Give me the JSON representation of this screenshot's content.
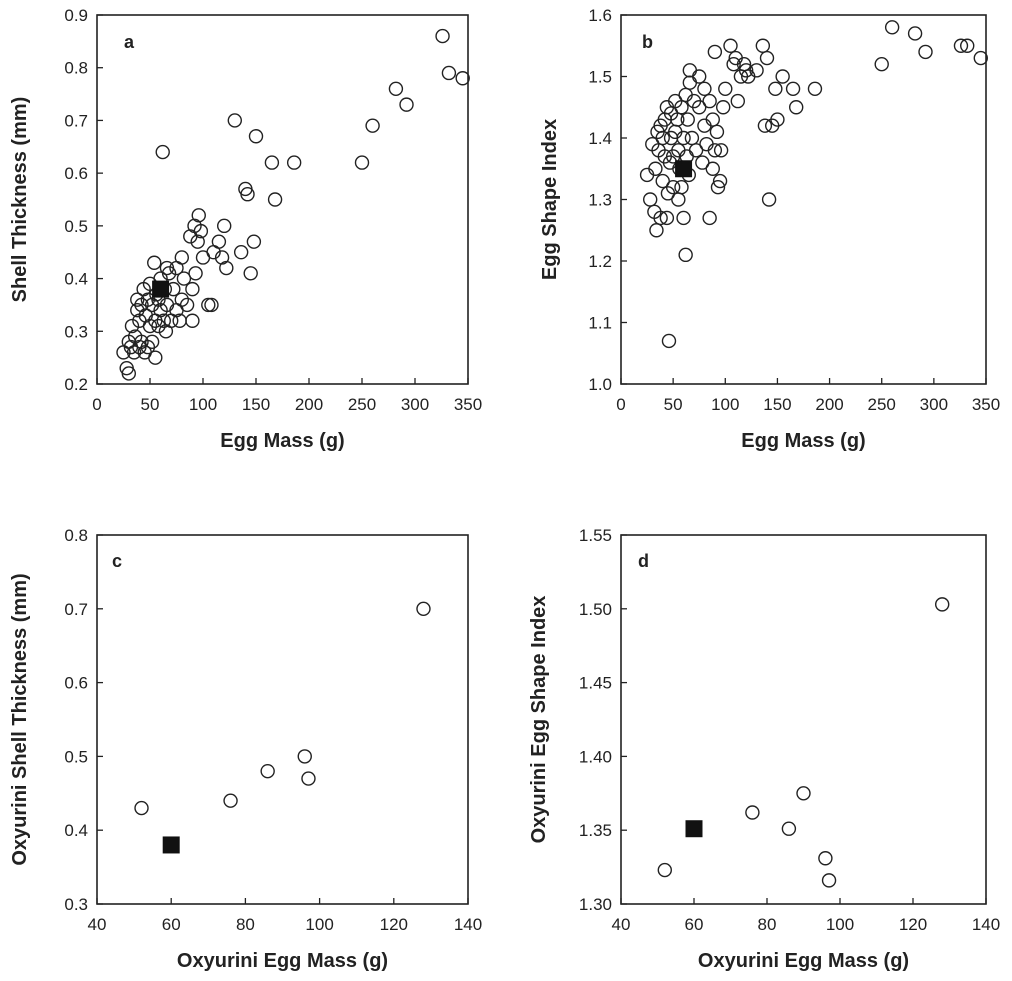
{
  "colors": {
    "axis": "#222222",
    "marker": "#222222",
    "highlight": "#111111"
  },
  "chart_data": [
    {
      "panel": "a",
      "type": "scatter",
      "title": "",
      "xlabel": "Egg Mass (g)",
      "ylabel": "Shell Thickness (mm)",
      "xlim": [
        0,
        350
      ],
      "ylim": [
        0.2,
        0.9
      ],
      "xticks": [
        0,
        50,
        100,
        150,
        200,
        250,
        300,
        350
      ],
      "yticks": [
        0.2,
        0.3,
        0.4,
        0.5,
        0.6,
        0.7,
        0.8,
        0.9
      ],
      "tick_decimals": 1,
      "grid": false,
      "points": [
        [
          25,
          0.26
        ],
        [
          28,
          0.23
        ],
        [
          30,
          0.22
        ],
        [
          30,
          0.28
        ],
        [
          32,
          0.27
        ],
        [
          33,
          0.31
        ],
        [
          35,
          0.26
        ],
        [
          36,
          0.29
        ],
        [
          38,
          0.34
        ],
        [
          38,
          0.36
        ],
        [
          40,
          0.27
        ],
        [
          40,
          0.32
        ],
        [
          42,
          0.28
        ],
        [
          42,
          0.35
        ],
        [
          44,
          0.38
        ],
        [
          45,
          0.26
        ],
        [
          46,
          0.33
        ],
        [
          48,
          0.27
        ],
        [
          48,
          0.36
        ],
        [
          50,
          0.31
        ],
        [
          50,
          0.39
        ],
        [
          52,
          0.28
        ],
        [
          52,
          0.35
        ],
        [
          54,
          0.43
        ],
        [
          55,
          0.25
        ],
        [
          55,
          0.32
        ],
        [
          56,
          0.37
        ],
        [
          58,
          0.31
        ],
        [
          58,
          0.36
        ],
        [
          60,
          0.34
        ],
        [
          60,
          0.4
        ],
        [
          62,
          0.64
        ],
        [
          63,
          0.32
        ],
        [
          64,
          0.38
        ],
        [
          65,
          0.3
        ],
        [
          66,
          0.42
        ],
        [
          66,
          0.35
        ],
        [
          68,
          0.41
        ],
        [
          70,
          0.32
        ],
        [
          72,
          0.38
        ],
        [
          75,
          0.34
        ],
        [
          75,
          0.42
        ],
        [
          78,
          0.32
        ],
        [
          80,
          0.44
        ],
        [
          80,
          0.36
        ],
        [
          82,
          0.4
        ],
        [
          85,
          0.35
        ],
        [
          88,
          0.48
        ],
        [
          90,
          0.32
        ],
        [
          90,
          0.38
        ],
        [
          92,
          0.5
        ],
        [
          93,
          0.41
        ],
        [
          95,
          0.47
        ],
        [
          96,
          0.52
        ],
        [
          98,
          0.49
        ],
        [
          100,
          0.44
        ],
        [
          105,
          0.35
        ],
        [
          108,
          0.35
        ],
        [
          110,
          0.45
        ],
        [
          115,
          0.47
        ],
        [
          118,
          0.44
        ],
        [
          120,
          0.5
        ],
        [
          122,
          0.42
        ],
        [
          130,
          0.7
        ],
        [
          136,
          0.45
        ],
        [
          140,
          0.57
        ],
        [
          142,
          0.56
        ],
        [
          145,
          0.41
        ],
        [
          148,
          0.47
        ],
        [
          150,
          0.67
        ],
        [
          165,
          0.62
        ],
        [
          168,
          0.55
        ],
        [
          186,
          0.62
        ],
        [
          250,
          0.62
        ],
        [
          260,
          0.69
        ],
        [
          282,
          0.76
        ],
        [
          292,
          0.73
        ],
        [
          326,
          0.86
        ],
        [
          332,
          0.79
        ],
        [
          345,
          0.78
        ]
      ],
      "highlight": [
        [
          60,
          0.38
        ]
      ]
    },
    {
      "panel": "b",
      "type": "scatter",
      "title": "",
      "xlabel": "Egg Mass (g)",
      "ylabel": "Egg Shape Index",
      "xlim": [
        0,
        350
      ],
      "ylim": [
        1.0,
        1.6
      ],
      "xticks": [
        0,
        50,
        100,
        150,
        200,
        250,
        300,
        350
      ],
      "yticks": [
        1.0,
        1.1,
        1.2,
        1.3,
        1.4,
        1.5,
        1.6
      ],
      "tick_decimals": 1,
      "grid": false,
      "points": [
        [
          25,
          1.34
        ],
        [
          28,
          1.3
        ],
        [
          30,
          1.39
        ],
        [
          32,
          1.28
        ],
        [
          33,
          1.35
        ],
        [
          34,
          1.25
        ],
        [
          35,
          1.41
        ],
        [
          36,
          1.38
        ],
        [
          38,
          1.42
        ],
        [
          38,
          1.27
        ],
        [
          40,
          1.4
        ],
        [
          40,
          1.33
        ],
        [
          42,
          1.43
        ],
        [
          42,
          1.37
        ],
        [
          44,
          1.45
        ],
        [
          44,
          1.27
        ],
        [
          45,
          1.31
        ],
        [
          46,
          1.07
        ],
        [
          47,
          1.36
        ],
        [
          48,
          1.44
        ],
        [
          48,
          1.4
        ],
        [
          50,
          1.37
        ],
        [
          50,
          1.32
        ],
        [
          52,
          1.41
        ],
        [
          52,
          1.46
        ],
        [
          54,
          1.43
        ],
        [
          55,
          1.38
        ],
        [
          55,
          1.3
        ],
        [
          56,
          1.35
        ],
        [
          58,
          1.32
        ],
        [
          58,
          1.45
        ],
        [
          60,
          1.4
        ],
        [
          60,
          1.27
        ],
        [
          62,
          1.21
        ],
        [
          62,
          1.47
        ],
        [
          63,
          1.37
        ],
        [
          64,
          1.43
        ],
        [
          65,
          1.34
        ],
        [
          66,
          1.51
        ],
        [
          66,
          1.49
        ],
        [
          68,
          1.4
        ],
        [
          70,
          1.46
        ],
        [
          72,
          1.38
        ],
        [
          75,
          1.45
        ],
        [
          75,
          1.5
        ],
        [
          78,
          1.36
        ],
        [
          80,
          1.42
        ],
        [
          80,
          1.48
        ],
        [
          82,
          1.39
        ],
        [
          85,
          1.46
        ],
        [
          85,
          1.27
        ],
        [
          88,
          1.43
        ],
        [
          88,
          1.35
        ],
        [
          90,
          1.38
        ],
        [
          90,
          1.54
        ],
        [
          92,
          1.41
        ],
        [
          93,
          1.32
        ],
        [
          95,
          1.33
        ],
        [
          96,
          1.38
        ],
        [
          98,
          1.45
        ],
        [
          100,
          1.48
        ],
        [
          105,
          1.55
        ],
        [
          108,
          1.52
        ],
        [
          110,
          1.53
        ],
        [
          112,
          1.46
        ],
        [
          115,
          1.5
        ],
        [
          118,
          1.52
        ],
        [
          120,
          1.51
        ],
        [
          122,
          1.5
        ],
        [
          130,
          1.51
        ],
        [
          136,
          1.55
        ],
        [
          138,
          1.42
        ],
        [
          140,
          1.53
        ],
        [
          142,
          1.3
        ],
        [
          145,
          1.42
        ],
        [
          148,
          1.48
        ],
        [
          150,
          1.43
        ],
        [
          155,
          1.5
        ],
        [
          165,
          1.48
        ],
        [
          168,
          1.45
        ],
        [
          186,
          1.48
        ],
        [
          250,
          1.52
        ],
        [
          260,
          1.58
        ],
        [
          282,
          1.57
        ],
        [
          292,
          1.54
        ],
        [
          326,
          1.55
        ],
        [
          332,
          1.55
        ],
        [
          345,
          1.53
        ]
      ],
      "highlight": [
        [
          60,
          1.35
        ]
      ]
    },
    {
      "panel": "c",
      "type": "scatter",
      "title": "",
      "xlabel": "Oxyurini Egg Mass (g)",
      "ylabel": "Oxyurini Shell Thickness (mm)",
      "xlim": [
        40,
        140
      ],
      "ylim": [
        0.3,
        0.8
      ],
      "xticks": [
        40,
        60,
        80,
        100,
        120,
        140
      ],
      "yticks": [
        0.3,
        0.4,
        0.5,
        0.6,
        0.7,
        0.8
      ],
      "tick_decimals": 1,
      "grid": false,
      "points": [
        [
          52,
          0.43
        ],
        [
          76,
          0.44
        ],
        [
          86,
          0.48
        ],
        [
          96,
          0.5
        ],
        [
          97,
          0.47
        ],
        [
          128,
          0.7
        ]
      ],
      "highlight": [
        [
          60,
          0.38
        ]
      ]
    },
    {
      "panel": "d",
      "type": "scatter",
      "title": "",
      "xlabel": "Oxyurini Egg Mass (g)",
      "ylabel": "Oxyurini Egg Shape Index",
      "xlim": [
        40,
        140
      ],
      "ylim": [
        1.3,
        1.55
      ],
      "xticks": [
        40,
        60,
        80,
        100,
        120,
        140
      ],
      "yticks": [
        1.3,
        1.35,
        1.4,
        1.45,
        1.5,
        1.55
      ],
      "tick_decimals": 2,
      "grid": false,
      "points": [
        [
          52,
          1.323
        ],
        [
          76,
          1.362
        ],
        [
          86,
          1.351
        ],
        [
          90,
          1.375
        ],
        [
          96,
          1.331
        ],
        [
          97,
          1.316
        ],
        [
          128,
          1.503
        ]
      ],
      "highlight": [
        [
          60,
          1.351
        ]
      ]
    }
  ]
}
